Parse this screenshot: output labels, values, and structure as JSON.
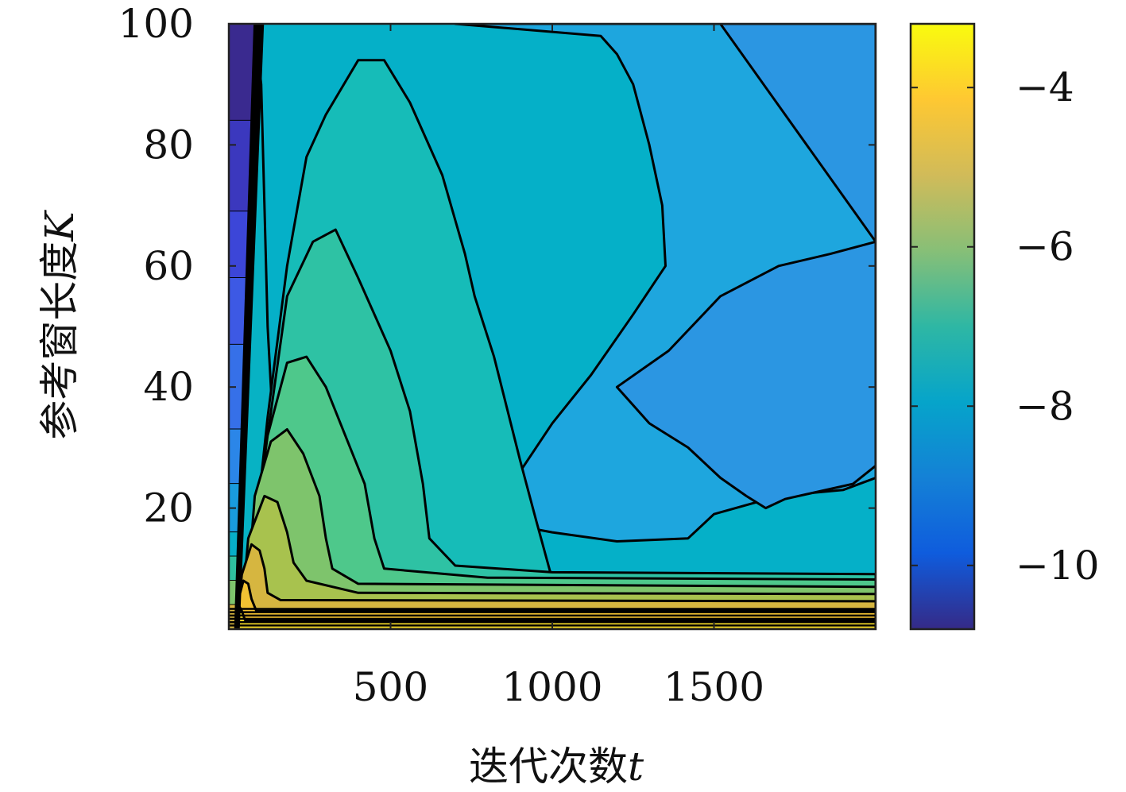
{
  "chart_data": {
    "type": "contour",
    "x_label_parts": [
      "迭代次数",
      "t"
    ],
    "y_label_parts": [
      "参考窗长度",
      "K"
    ],
    "x_ticks": [
      {
        "value": 500,
        "label": "500"
      },
      {
        "value": 1000,
        "label": "1000"
      },
      {
        "value": 1500,
        "label": "1500"
      }
    ],
    "y_ticks": [
      {
        "value": 20,
        "label": "20"
      },
      {
        "value": 40,
        "label": "40"
      },
      {
        "value": 60,
        "label": "60"
      },
      {
        "value": 80,
        "label": "80"
      },
      {
        "value": 100,
        "label": "100"
      }
    ],
    "xlim": [
      0,
      2000
    ],
    "ylim": [
      0,
      100
    ],
    "colorbar": {
      "range": [
        -10.8,
        -3.2
      ],
      "ticks": [
        {
          "value": -4,
          "label": "−4"
        },
        {
          "value": -6,
          "label": "−6"
        },
        {
          "value": -8,
          "label": "−8"
        },
        {
          "value": -10,
          "label": "−10"
        }
      ],
      "colormap": [
        "#352a87",
        "#0f5cdd",
        "#1481d6",
        "#06a4ca",
        "#2eb7a4",
        "#87bf77",
        "#d1bb59",
        "#fec832",
        "#f9fb0e"
      ]
    },
    "levels": [
      {
        "value": -7.3,
        "color": "#07b2c4",
        "points": [
          [
            20,
            100
          ],
          [
            80,
            100
          ],
          [
            100,
            90
          ],
          [
            110,
            70
          ],
          [
            120,
            50
          ],
          [
            140,
            30
          ],
          [
            180,
            18
          ],
          [
            240,
            12
          ],
          [
            350,
            9
          ],
          [
            550,
            7.8
          ],
          [
            1000,
            7.2
          ],
          [
            1500,
            6.9
          ],
          [
            2000,
            6.8
          ],
          [
            2000,
            0
          ],
          [
            20,
            0
          ]
        ]
      },
      {
        "value": -7.0,
        "color": "#16bcb8",
        "points": [
          [
            300,
            85
          ],
          [
            400,
            94
          ],
          [
            480,
            94
          ],
          [
            560,
            87
          ],
          [
            660,
            75
          ],
          [
            730,
            62
          ],
          [
            760,
            55
          ],
          [
            820,
            45
          ],
          [
            900,
            28
          ],
          [
            950,
            18
          ],
          [
            1000,
            8.2
          ],
          [
            2000,
            7.9
          ],
          [
            2000,
            0
          ],
          [
            80,
            0
          ],
          [
            90,
            20
          ],
          [
            120,
            35
          ],
          [
            180,
            60
          ],
          [
            240,
            78
          ]
        ]
      },
      {
        "value": -6.6,
        "color": "#2ec2a4",
        "points": [
          [
            180,
            55
          ],
          [
            260,
            64
          ],
          [
            330,
            66
          ],
          [
            400,
            58
          ],
          [
            500,
            46
          ],
          [
            560,
            36
          ],
          [
            600,
            24
          ],
          [
            620,
            15
          ],
          [
            700,
            10.5
          ],
          [
            1000,
            9.4
          ],
          [
            2000,
            9.1
          ],
          [
            2000,
            0
          ],
          [
            60,
            0
          ],
          [
            80,
            15
          ],
          [
            120,
            32
          ]
        ]
      },
      {
        "value": -6.2,
        "color": "#4ec88b",
        "points": [
          [
            120,
            32
          ],
          [
            180,
            44
          ],
          [
            240,
            45
          ],
          [
            300,
            40
          ],
          [
            360,
            32
          ],
          [
            420,
            24
          ],
          [
            450,
            15
          ],
          [
            480,
            10
          ],
          [
            800,
            8.5
          ],
          [
            2000,
            8.2
          ],
          [
            2000,
            0
          ],
          [
            50,
            0
          ],
          [
            70,
            12
          ]
        ]
      },
      {
        "value": -5.7,
        "color": "#7ec46c",
        "points": [
          [
            80,
            22
          ],
          [
            130,
            31
          ],
          [
            180,
            33
          ],
          [
            230,
            29
          ],
          [
            280,
            22
          ],
          [
            300,
            15
          ],
          [
            320,
            10
          ],
          [
            400,
            7.5
          ],
          [
            2000,
            7
          ],
          [
            2000,
            0
          ],
          [
            40,
            0
          ],
          [
            60,
            8
          ]
        ]
      },
      {
        "value": -5.2,
        "color": "#a8c24e",
        "points": [
          [
            60,
            15
          ],
          [
            110,
            22
          ],
          [
            150,
            21
          ],
          [
            180,
            16
          ],
          [
            200,
            11
          ],
          [
            240,
            8
          ],
          [
            400,
            6
          ],
          [
            2000,
            5.8
          ],
          [
            2000,
            0
          ],
          [
            30,
            0
          ],
          [
            45,
            6
          ]
        ]
      },
      {
        "value": -4.7,
        "color": "#d6b640",
        "points": [
          [
            40,
            9
          ],
          [
            70,
            14
          ],
          [
            95,
            13
          ],
          [
            110,
            10
          ],
          [
            120,
            6
          ],
          [
            160,
            4.8
          ],
          [
            2000,
            4.6
          ],
          [
            2000,
            0
          ],
          [
            25,
            0
          ],
          [
            30,
            3
          ]
        ]
      },
      {
        "value": -4.2,
        "color": "#f2c233",
        "points": [
          [
            25,
            4
          ],
          [
            45,
            8
          ],
          [
            60,
            7.5
          ],
          [
            70,
            5
          ],
          [
            85,
            3
          ],
          [
            2000,
            3.1
          ],
          [
            2000,
            0
          ],
          [
            20,
            0
          ]
        ]
      },
      {
        "value": -3.6,
        "color": "#fde22a",
        "points": [
          [
            20,
            1
          ],
          [
            30,
            4
          ],
          [
            40,
            3
          ],
          [
            50,
            1.5
          ],
          [
            2000,
            1.5
          ],
          [
            2000,
            0
          ],
          [
            20,
            0
          ]
        ]
      }
    ],
    "right_pockets": [
      {
        "value": -7.6,
        "color": "#1ea6de",
        "points": [
          [
            700,
            100
          ],
          [
            2000,
            100
          ],
          [
            2000,
            25
          ],
          [
            1900,
            23
          ],
          [
            1700,
            22
          ],
          [
            1500,
            19
          ],
          [
            1420,
            15
          ],
          [
            1200,
            14.5
          ],
          [
            1000,
            16
          ],
          [
            900,
            17
          ],
          [
            860,
            20
          ],
          [
            900,
            26
          ],
          [
            1000,
            34
          ],
          [
            1120,
            42
          ],
          [
            1250,
            52
          ],
          [
            1350,
            60
          ],
          [
            1340,
            70
          ],
          [
            1300,
            80
          ],
          [
            1250,
            90
          ],
          [
            1200,
            95
          ],
          [
            1150,
            98
          ]
        ]
      },
      {
        "value": -7.9,
        "color": "#2b96e2",
        "points": [
          [
            1520,
            100
          ],
          [
            2000,
            100
          ],
          [
            2000,
            27
          ],
          [
            1930,
            24
          ],
          [
            1720,
            21.5
          ],
          [
            1660,
            20
          ],
          [
            1600,
            22
          ],
          [
            1520,
            25
          ],
          [
            1420,
            30
          ],
          [
            1300,
            34
          ],
          [
            1200,
            40
          ],
          [
            1360,
            46
          ],
          [
            1520,
            55
          ],
          [
            1700,
            60
          ],
          [
            1860,
            62
          ],
          [
            2000,
            64
          ]
        ]
      }
    ],
    "left_strip_bands": [
      {
        "k_from": 84,
        "k_to": 100,
        "color": "#3a2a8f"
      },
      {
        "k_from": 69,
        "k_to": 84,
        "color": "#3b38be"
      },
      {
        "k_from": 58,
        "k_to": 69,
        "color": "#3c46d8"
      },
      {
        "k_from": 47,
        "k_to": 58,
        "color": "#3d59e4"
      },
      {
        "k_from": 33,
        "k_to": 47,
        "color": "#3670e8"
      },
      {
        "k_from": 24,
        "k_to": 33,
        "color": "#2b86e8"
      },
      {
        "k_from": 16,
        "k_to": 24,
        "color": "#199bde"
      },
      {
        "k_from": 12,
        "k_to": 16,
        "color": "#07aec8"
      },
      {
        "k_from": 8,
        "k_to": 12,
        "color": "#2fbf9f"
      },
      {
        "k_from": 4,
        "k_to": 8,
        "color": "#7ec46c"
      },
      {
        "k_from": 0,
        "k_to": 4,
        "color": "#d6b640"
      }
    ]
  }
}
